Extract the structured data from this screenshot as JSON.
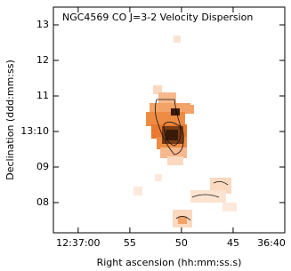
{
  "chart_data": {
    "type": "image",
    "title": "NGC4569 CO J=3-2 Velocity Dispersion",
    "x_label": "Right ascension (hh:mm:ss.s)",
    "y_label": "Declination (ddd:mm:ss)",
    "xlim": [
      2222.4,
      2200
    ],
    "xticks": [
      {
        "value": 2220,
        "label": "12:37:00"
      },
      {
        "value": 2215,
        "label": "55"
      },
      {
        "value": 2210,
        "label": "50"
      },
      {
        "value": 2205,
        "label": "45"
      },
      {
        "value": 2200,
        "label": "36:40"
      }
    ],
    "ylim": [
      7.15,
      13.5
    ],
    "yticks": [
      13,
      12,
      11,
      {
        "value": 10,
        "label": "13:10"
      },
      {
        "value": 9,
        "label": "09"
      },
      {
        "value": 8,
        "label": "08"
      }
    ]
  }
}
